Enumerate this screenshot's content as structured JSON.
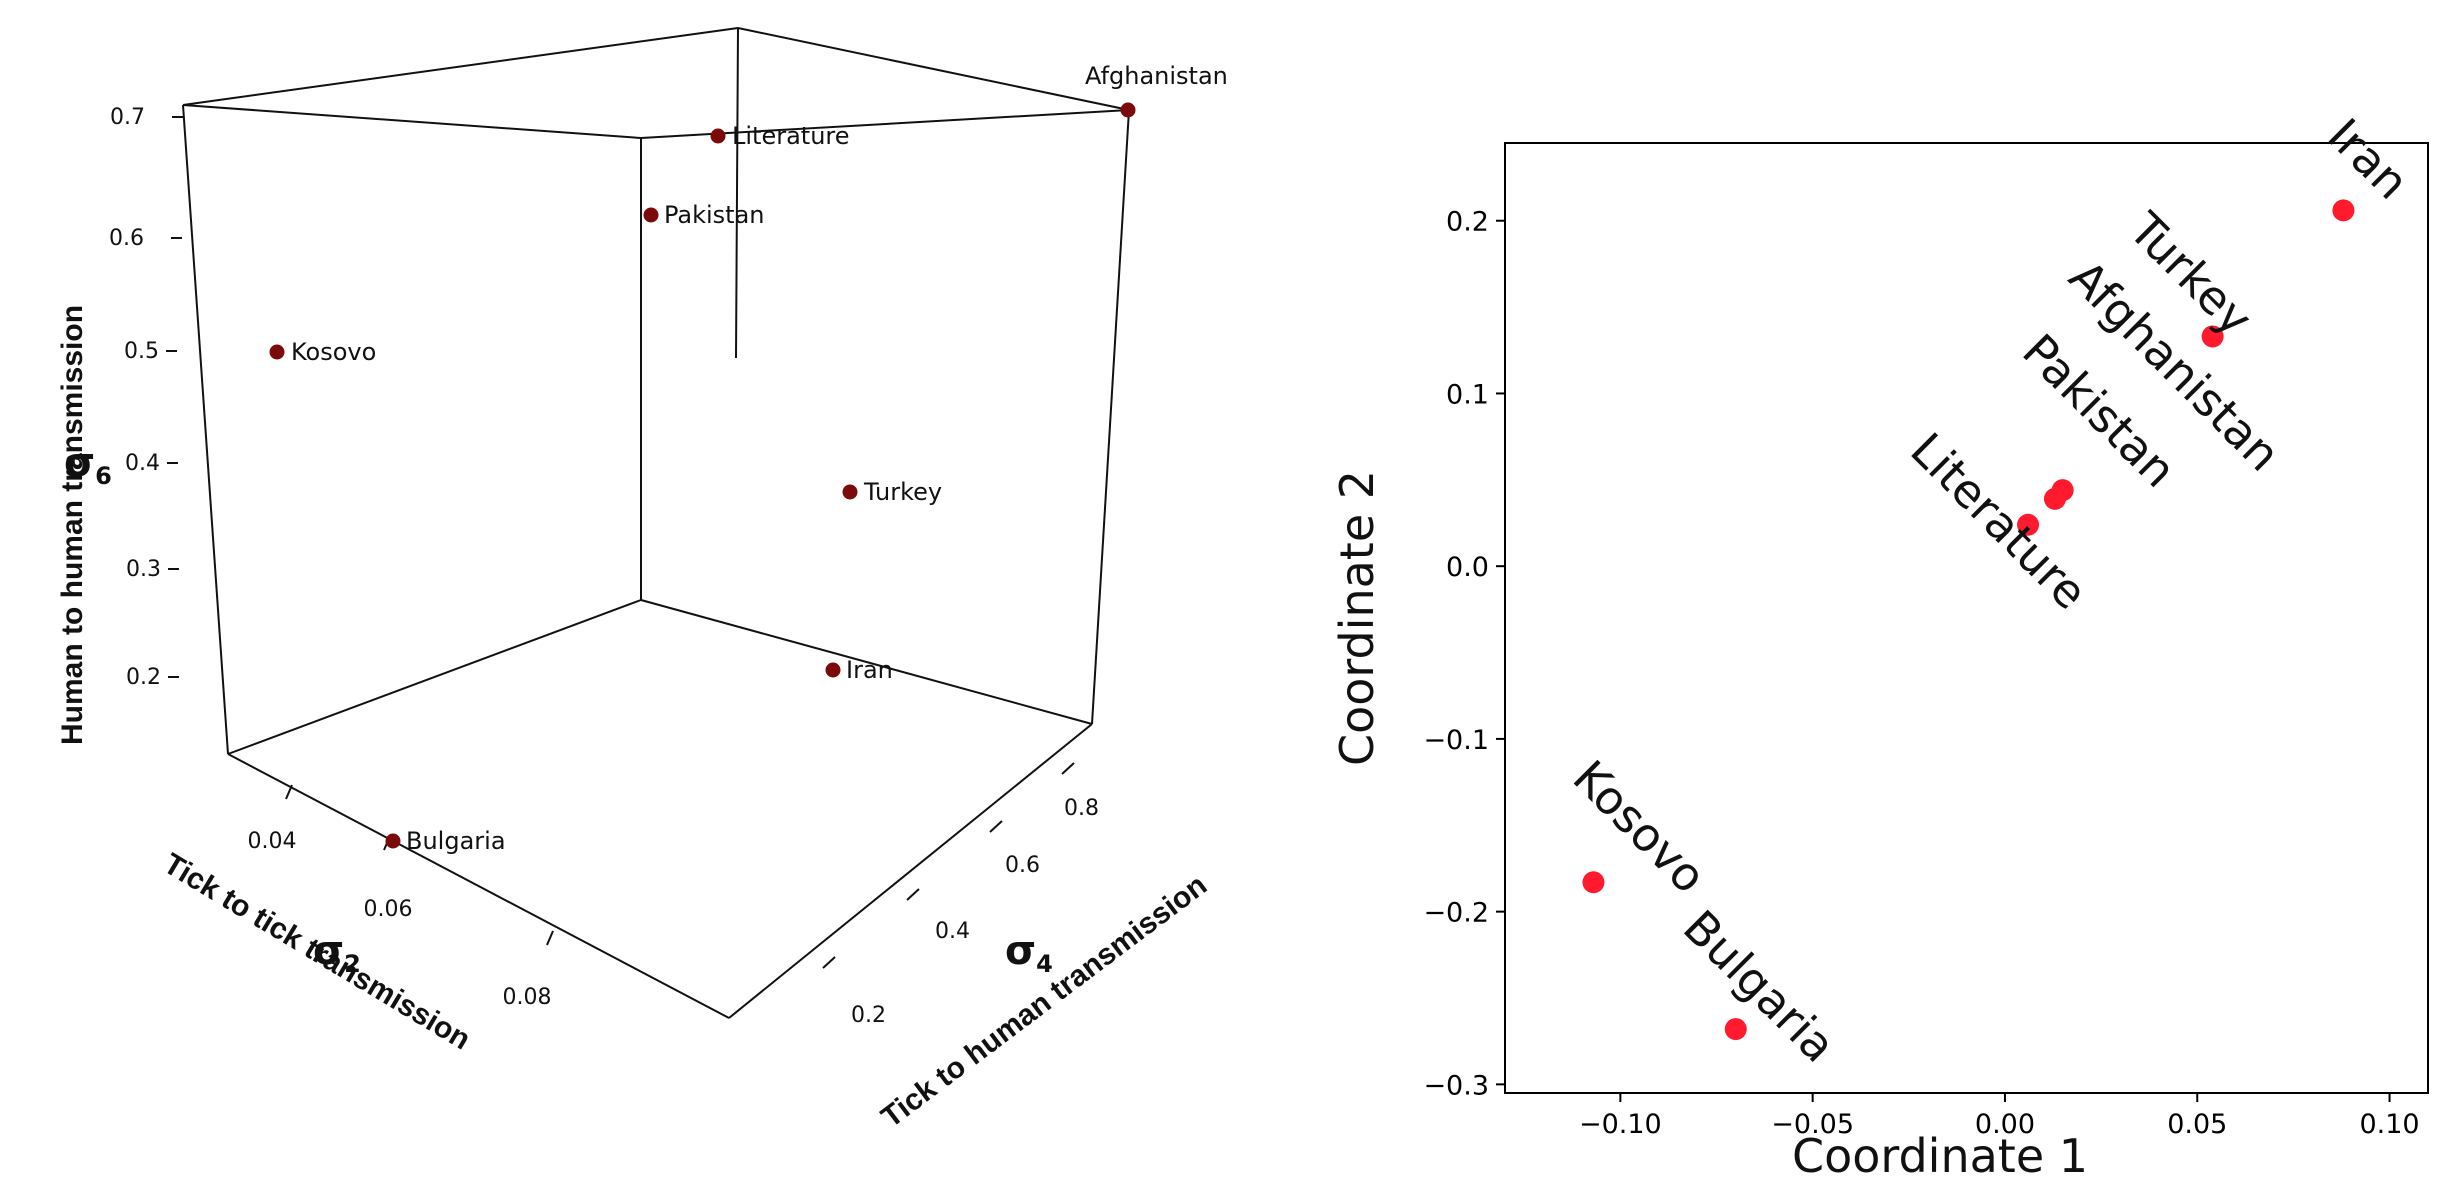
{
  "chart_data": [
    {
      "type": "scatter3d",
      "axes": {
        "x": {
          "symbol": "σ",
          "subscript": "2",
          "title": "Tick to tick transmission",
          "ticks": [
            "0.04",
            "0.06",
            "0.08"
          ]
        },
        "y": {
          "symbol": "σ",
          "subscript": "4",
          "title": "Tick to human transmission",
          "ticks": [
            "0.2",
            "0.4",
            "0.6",
            "0.8"
          ]
        },
        "z": {
          "symbol": "σ",
          "subscript": "6",
          "title": "Human to human transmission",
          "ticks": [
            "0.2",
            "0.3",
            "0.4",
            "0.5",
            "0.6",
            "0.7"
          ]
        }
      },
      "point_color": "#7b0a0a",
      "points": [
        {
          "label": "Afghanistan"
        },
        {
          "label": "Literature"
        },
        {
          "label": "Pakistan"
        },
        {
          "label": "Kosovo"
        },
        {
          "label": "Turkey"
        },
        {
          "label": "Iran"
        },
        {
          "label": "Bulgaria"
        }
      ]
    },
    {
      "type": "scatter",
      "xlabel": "Coordinate 1",
      "ylabel": "Coordinate 2",
      "xlim": [
        -0.13,
        0.11
      ],
      "ylim": [
        -0.305,
        0.245
      ],
      "xticks": [
        -0.1,
        -0.05,
        0.0,
        0.05,
        0.1
      ],
      "xtick_labels": [
        "−0.10",
        "−0.05",
        "0.00",
        "0.05",
        "0.10"
      ],
      "yticks": [
        0.2,
        0.1,
        0.0,
        -0.1,
        -0.2,
        -0.3
      ],
      "ytick_labels": [
        "0.2",
        "0.1",
        "0.0",
        "−0.1",
        "−0.2",
        "−0.3"
      ],
      "point_color": "#ff1a2e",
      "points": [
        {
          "label": "Iran",
          "x": 0.088,
          "y": 0.206
        },
        {
          "label": "Turkey",
          "x": 0.054,
          "y": 0.133
        },
        {
          "label": "Afghanistan",
          "x": 0.015,
          "y": 0.044
        },
        {
          "label": "Pakistan",
          "x": 0.013,
          "y": 0.039
        },
        {
          "label": "Literature",
          "x": 0.006,
          "y": 0.024
        },
        {
          "label": "Kosovo",
          "x": -0.107,
          "y": -0.183
        },
        {
          "label": "Bulgaria",
          "x": -0.07,
          "y": -0.268
        }
      ]
    }
  ]
}
